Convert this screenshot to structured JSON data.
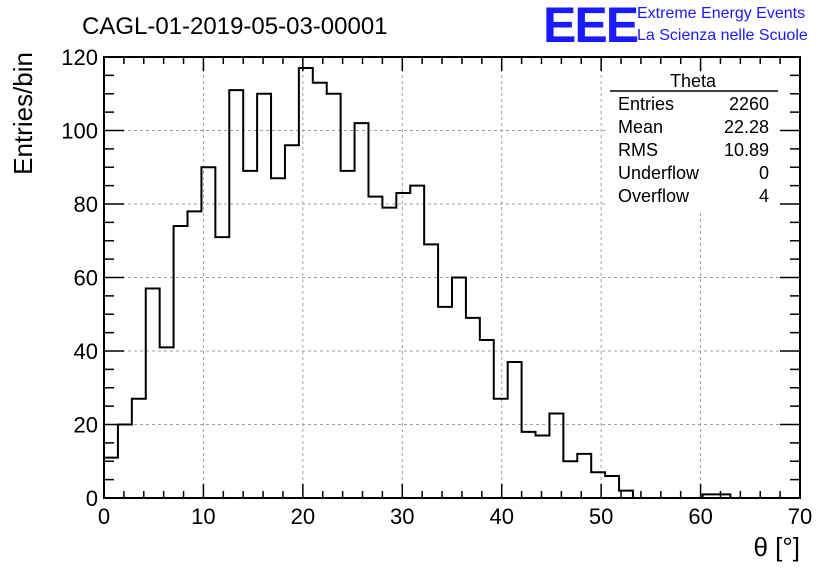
{
  "chart_data": {
    "type": "bar",
    "title": "CAGL-01-2019-05-03-00001",
    "xlabel": "θ [°]",
    "ylabel": "Entries/bin",
    "xlim": [
      0,
      70
    ],
    "ylim": [
      0,
      120
    ],
    "x_ticks": [
      0,
      10,
      20,
      30,
      40,
      50,
      60,
      70
    ],
    "y_ticks": [
      0,
      20,
      40,
      60,
      80,
      100,
      120
    ],
    "grid": true,
    "bin_width": 1.4,
    "bin_edges_start": 0,
    "values": [
      11,
      20,
      27,
      57,
      41,
      74,
      78,
      90,
      71,
      111,
      89,
      110,
      87,
      96,
      117,
      113,
      110,
      89,
      102,
      82,
      79,
      83,
      85,
      69,
      52,
      60,
      49,
      43,
      27,
      37,
      18,
      17,
      23,
      10,
      12,
      7,
      6,
      2,
      0,
      0,
      0,
      0,
      0,
      1,
      1,
      0,
      0,
      0,
      0,
      0
    ]
  },
  "stats_box": {
    "title": "Theta",
    "rows": [
      {
        "label": "Entries",
        "value": "2260"
      },
      {
        "label": "Mean",
        "value": "22.28"
      },
      {
        "label": "RMS",
        "value": "10.89"
      },
      {
        "label": "Underflow",
        "value": "0"
      },
      {
        "label": "Overflow",
        "value": "4"
      }
    ]
  },
  "logo": {
    "mark": "EEE",
    "line1": "Extreme Energy Events",
    "line2": "La Scienza nelle Scuole"
  }
}
